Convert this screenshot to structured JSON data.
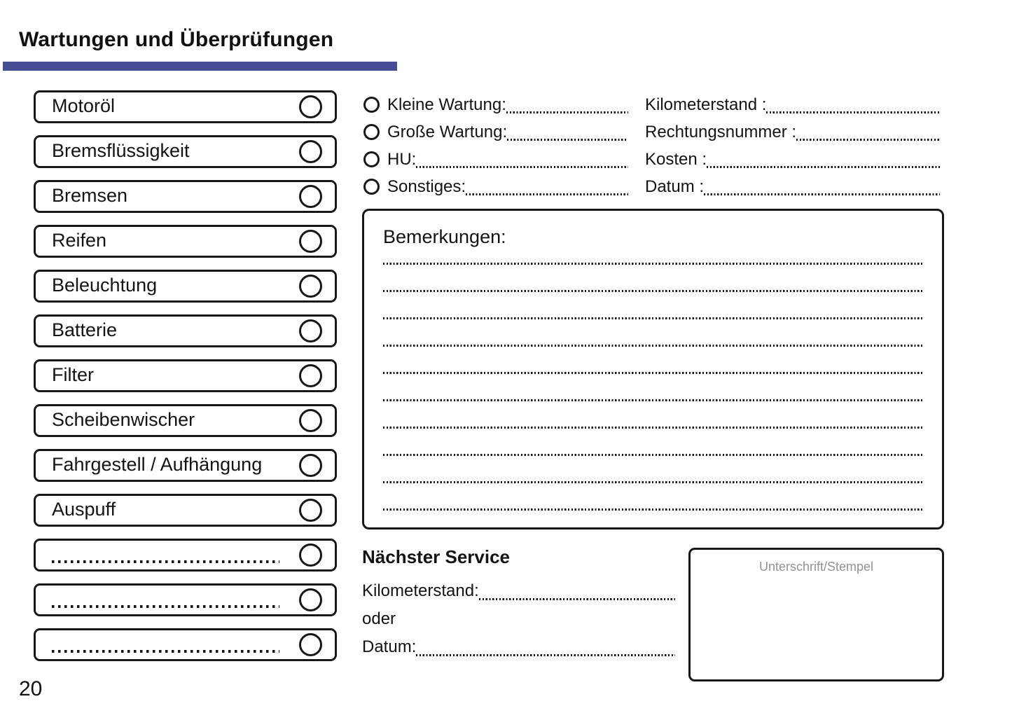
{
  "page": {
    "title": "Wartungen und Überprüfungen",
    "number": "20",
    "accent_color": "#474d94"
  },
  "checklist": {
    "items": [
      "Motoröl",
      "Bremsflüssigkeit",
      "Bremsen",
      "Reifen",
      "Beleuchtung",
      "Batterie",
      "Filter",
      "Scheibenwischer",
      "Fahrgestell / Aufhängung",
      "Auspuff",
      "",
      "",
      ""
    ]
  },
  "service_types": {
    "options": [
      "Kleine Wartung:",
      "Große Wartung:",
      "HU:",
      "Sonstiges:"
    ]
  },
  "record_fields": {
    "labels": [
      "Kilometerstand :",
      "Rechtungsnummer :",
      "Kosten :",
      "Datum :"
    ]
  },
  "remarks": {
    "title": "Bemerkungen:",
    "line_count": 10
  },
  "next_service": {
    "title": "Nächster Service",
    "kilometers_label": "Kilometerstand:",
    "or_label": "oder",
    "date_label": "Datum:"
  },
  "signature": {
    "label": "Unterschrift/Stempel"
  }
}
